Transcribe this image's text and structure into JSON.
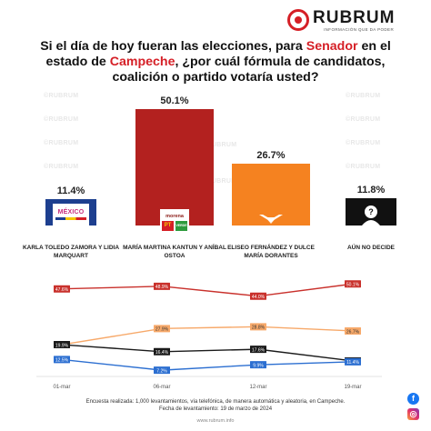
{
  "brand": {
    "name": "RUBRUM",
    "tagline": "INFORMACIÓN QUE DA PODER",
    "watermark": "©RUBRUM",
    "url": "www.rubrum.info",
    "accent": "#d51f26"
  },
  "question": {
    "part1": "Si el día de hoy fueran las elecciones, para ",
    "highlight1": "Senador",
    "part2": " en el estado de ",
    "highlight2": "Campeche",
    "part3": ", ¿por cuál fórmula de candidatos, coalición o partido votaría usted?"
  },
  "chart_data": [
    {
      "type": "bar",
      "categories": [
        "KARLA TOLEDO ZAMORA Y LIDIA MARQUART",
        "MARÍA MARTINA KANTUN Y ANÍBAL OSTOA",
        "ELISEO FERNÁNDEZ Y DULCE MARÍA DORANTES",
        "AÚN NO DECIDE"
      ],
      "values": [
        11.4,
        50.1,
        26.7,
        11.8
      ],
      "value_labels": [
        "11.4%",
        "50.1%",
        "26.7%",
        "11.8%"
      ],
      "colors": [
        "#1d3f8f",
        "#b3211f",
        "#f58220",
        "#111111"
      ],
      "party_labels": [
        "MÉXICO",
        "morena",
        "",
        ""
      ],
      "party_labels_2": [
        "",
        "PT",
        "",
        ""
      ],
      "party_labels_3": [
        "",
        "VERDE",
        "",
        ""
      ],
      "ylim": [
        0,
        55
      ]
    },
    {
      "type": "line",
      "x": [
        "01-mar",
        "06-mar",
        "12-mar",
        "19-mar"
      ],
      "series": [
        {
          "color": "#c9312c",
          "values": [
            47.6,
            48.9,
            44.0,
            50.1
          ],
          "labels": [
            "47.6%",
            "48.9%",
            "44.0%",
            "50.1%"
          ]
        },
        {
          "color": "#f7a96a",
          "values": [
            19.9,
            27.9,
            28.8,
            26.7
          ],
          "labels": [
            "19.9%",
            "27.9%",
            "28.8%",
            "26.7%"
          ]
        },
        {
          "color": "#1a1a1a",
          "values": [
            19.9,
            16.4,
            17.6,
            11.8
          ],
          "labels": [
            "19.9%",
            "16.4%",
            "17.6%",
            "11.8%"
          ]
        },
        {
          "color": "#2c6fd1",
          "values": [
            12.5,
            7.2,
            9.9,
            11.4
          ],
          "labels": [
            "12.5%",
            "7.2%",
            "9.9%",
            "11.4%"
          ]
        }
      ]
    }
  ],
  "footer": {
    "line1": "Encuesta realizada: 1,000 levantamientos, vía telefónica, de manera automática y aleatoria, en Campeche.",
    "line2": "Fecha de levantamiento: 19 de marzo de 2024"
  },
  "social": {
    "facebook_icon": "f",
    "instagram_icon": "◎"
  }
}
